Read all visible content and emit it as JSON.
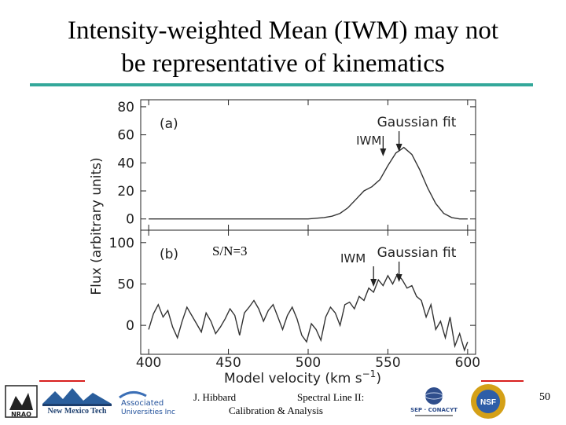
{
  "slide": {
    "title_line1": "Intensity-weighted Mean (IWM) may not",
    "title_line2": "be representative of kinematics",
    "footer_author": "J. Hibbard",
    "footer_course_line1": "Spectral Line II:",
    "footer_course_line2": "Calibration & Analysis",
    "page_number": "50",
    "accent_color": "#33a89a",
    "footer_rule_color": "#d8201e"
  },
  "logos": {
    "nrao": "NRAO",
    "nmt": "New Mexico Tech",
    "aui_1": "Associated",
    "aui_2": "Universities Inc",
    "conacyt": "SEP · CONACYT",
    "nsf": "NSF"
  },
  "chart_data": [
    {
      "type": "line",
      "panel_label": "(a)",
      "annotation_fit": "Gaussian fit",
      "annotation_iwm": "IWM",
      "fit_arrow_x": 557,
      "iwm_arrow_x": 547,
      "xlim": [
        395,
        605
      ],
      "ylim": [
        -8,
        85
      ],
      "yticks": [
        "80",
        "60",
        "40",
        "20",
        "0"
      ],
      "x": [
        400,
        410,
        420,
        430,
        440,
        450,
        460,
        470,
        480,
        490,
        500,
        510,
        515,
        520,
        525,
        530,
        535,
        540,
        545,
        550,
        555,
        560,
        565,
        570,
        575,
        580,
        585,
        590,
        595,
        600
      ],
      "y": [
        0,
        0,
        0,
        0,
        0,
        0,
        0,
        0,
        0,
        0,
        0,
        1,
        2,
        4,
        8,
        14,
        20,
        23,
        28,
        38,
        47,
        51,
        46,
        35,
        22,
        11,
        4,
        1,
        0,
        0
      ]
    },
    {
      "type": "line",
      "panel_label": "(b)",
      "annotation_sn": "S/N=3",
      "annotation_fit": "Gaussian fit",
      "annotation_iwm": "IWM",
      "fit_arrow_x": 557,
      "iwm_arrow_x": 541,
      "xlim": [
        395,
        605
      ],
      "ylim": [
        -35,
        115
      ],
      "yticks": [
        "100",
        "50",
        "0"
      ],
      "x": [
        400,
        403,
        406,
        409,
        412,
        415,
        418,
        421,
        424,
        427,
        430,
        433,
        436,
        439,
        442,
        445,
        448,
        451,
        454,
        457,
        460,
        463,
        466,
        469,
        472,
        475,
        478,
        481,
        484,
        487,
        490,
        493,
        496,
        499,
        502,
        505,
        508,
        511,
        514,
        517,
        520,
        523,
        526,
        529,
        532,
        535,
        538,
        541,
        544,
        547,
        550,
        553,
        556,
        559,
        562,
        565,
        568,
        571,
        574,
        577,
        580,
        583,
        586,
        589,
        592,
        595,
        598,
        600
      ],
      "y": [
        -5,
        14,
        25,
        10,
        18,
        -2,
        -15,
        5,
        22,
        12,
        2,
        -8,
        15,
        5,
        -10,
        -2,
        8,
        20,
        12,
        -12,
        15,
        22,
        30,
        20,
        5,
        18,
        25,
        10,
        -5,
        12,
        22,
        8,
        -12,
        -20,
        2,
        -5,
        -18,
        10,
        22,
        15,
        0,
        25,
        28,
        20,
        35,
        30,
        45,
        40,
        55,
        48,
        60,
        50,
        62,
        55,
        45,
        48,
        35,
        30,
        10,
        25,
        -5,
        5,
        -15,
        10,
        -25,
        -10,
        -30,
        -20
      ]
    }
  ],
  "axes": {
    "xlabel": "Model velocity (km s",
    "xlabel_exp": "−1",
    "xlabel_close": ")",
    "ylabel": "Flux (arbitrary units)",
    "xticks": [
      "400",
      "450",
      "500",
      "550",
      "600"
    ]
  }
}
